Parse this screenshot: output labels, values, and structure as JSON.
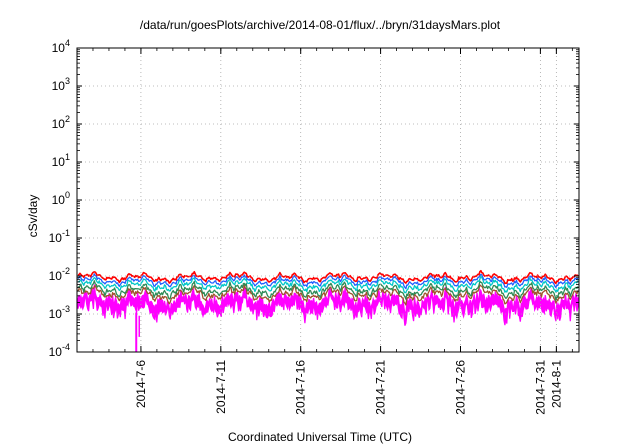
{
  "chart_data": {
    "type": "line",
    "title": "/data/run/goesPlots/archive/2014-08-01/flux/../bryn/31daysMars.plot",
    "xlabel": "Coordinated Universal Time (UTC)",
    "ylabel": "cSv/day",
    "yscale": "log",
    "ylim": [
      0.0001,
      10000
    ],
    "y_ticks": [
      {
        "value": 0.0001,
        "base": "10",
        "exp": "-4"
      },
      {
        "value": 0.001,
        "base": "10",
        "exp": "-3"
      },
      {
        "value": 0.01,
        "base": "10",
        "exp": "-2"
      },
      {
        "value": 0.1,
        "base": "10",
        "exp": "-1"
      },
      {
        "value": 1,
        "base": "10",
        "exp": "0"
      },
      {
        "value": 10,
        "base": "10",
        "exp": "1"
      },
      {
        "value": 100,
        "base": "10",
        "exp": "2"
      },
      {
        "value": 1000,
        "base": "10",
        "exp": "3"
      },
      {
        "value": 10000,
        "base": "10",
        "exp": "4"
      }
    ],
    "xlim": [
      "2014-07-02",
      "2014-08-02T10:00"
    ],
    "x_ticks": [
      "2014-7-6",
      "2014-7-11",
      "2014-7-16",
      "2014-7-21",
      "2014-7-26",
      "2014-7-31",
      "2014-8-1"
    ],
    "grid": true,
    "series": [
      {
        "color": "#ff00ff",
        "level": 0.0024,
        "amp": 0.42,
        "noise": 0.55,
        "fill": true
      },
      {
        "color": "#a0522d",
        "level": 0.0033,
        "amp": 0.38,
        "noise": 0.18
      },
      {
        "color": "#2e8b57",
        "level": 0.0042,
        "amp": 0.36,
        "noise": 0.16
      },
      {
        "color": "#00c8c8",
        "level": 0.0058,
        "amp": 0.32,
        "noise": 0.12
      },
      {
        "color": "#2060ff",
        "level": 0.0074,
        "amp": 0.28,
        "noise": 0.08
      },
      {
        "color": "#ff0000",
        "level": 0.0092,
        "amp": 0.25,
        "noise": 0.06
      }
    ]
  }
}
